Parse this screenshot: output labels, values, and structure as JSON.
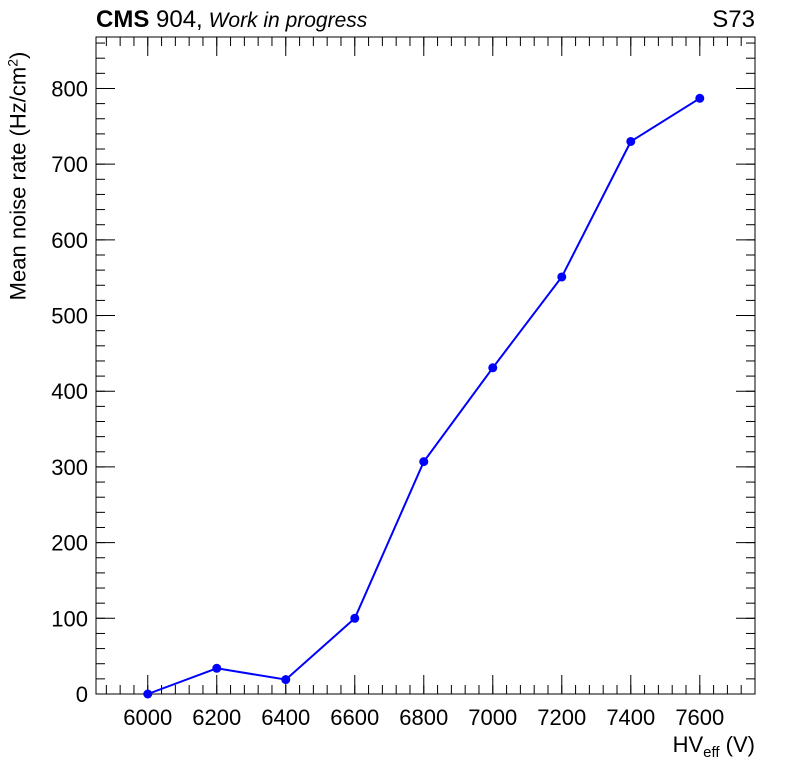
{
  "header": {
    "experiment": "CMS",
    "site": " 904,",
    "status": " Work in progress",
    "sample": "S73"
  },
  "chart_data": {
    "type": "line",
    "xlabel": {
      "main": "HV",
      "sub": "eff",
      "unit": " (V)"
    },
    "ylabel": {
      "main": "Mean noise rate (Hz/cm",
      "sup": "2",
      "end": ")"
    },
    "xlim": [
      5850,
      7760
    ],
    "ylim": [
      0,
      868
    ],
    "xticks": [
      6000,
      6200,
      6400,
      6600,
      6800,
      7000,
      7200,
      7400,
      7600
    ],
    "yticks": [
      0,
      100,
      200,
      300,
      400,
      500,
      600,
      700,
      800
    ],
    "grid": false,
    "series": [
      {
        "color": "#0000ff",
        "x": [
          6000,
          6200,
          6400,
          6600,
          6800,
          7000,
          7200,
          7400,
          7600
        ],
        "y": [
          0,
          34,
          19,
          100,
          307,
          431,
          551,
          730,
          787
        ]
      }
    ]
  }
}
